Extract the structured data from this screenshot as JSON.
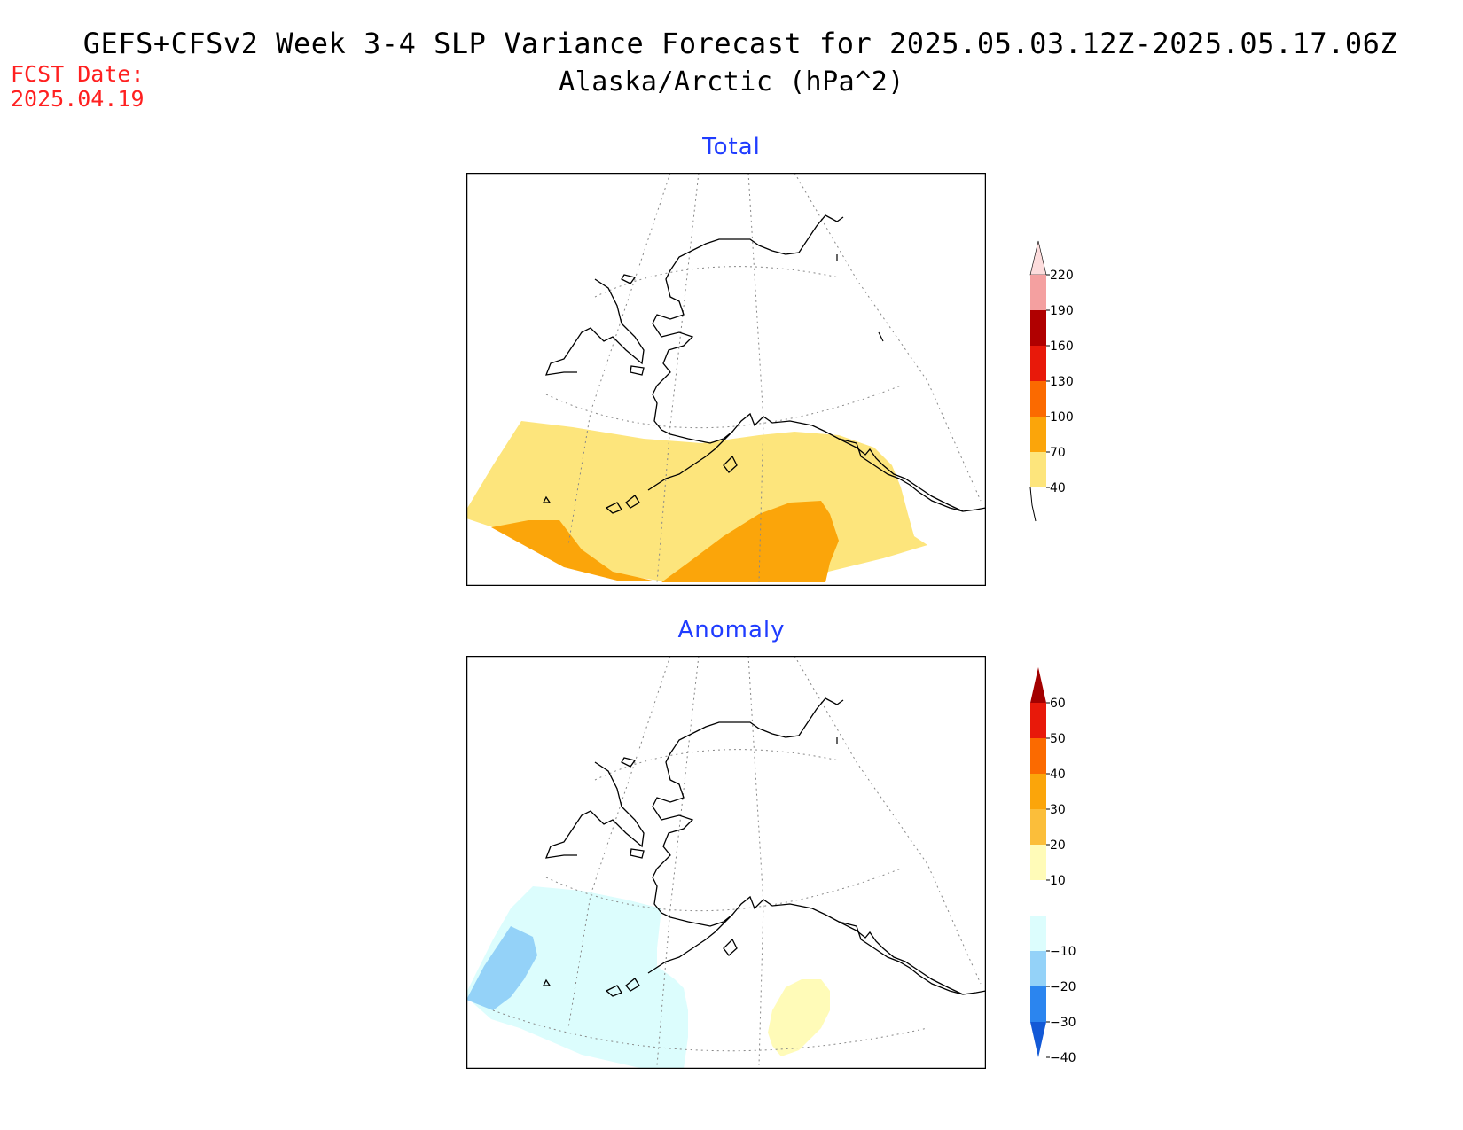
{
  "header": {
    "title": "GEFS+CFSv2 Week 3-4 SLP Variance Forecast for 2025.05.03.12Z-2025.05.17.06Z",
    "subtitle": "Alaska/Arctic (hPa^2)",
    "fcst_label": "FCST Date:",
    "fcst_date": "2025.04.19"
  },
  "panels": {
    "total": {
      "title": "Total",
      "colorbar": {
        "levels": [
          "40",
          "70",
          "100",
          "130",
          "160",
          "190",
          "220"
        ],
        "colors": [
          "#fde57c",
          "#fba50a",
          "#fb6a00",
          "#e8190a",
          "#b00000",
          "#f4a0a0",
          "#fddcdc"
        ]
      },
      "fills": [
        {
          "level": "40-70",
          "color": "#fde57c"
        },
        {
          "level": "70-100",
          "color": "#fba50a"
        }
      ]
    },
    "anomaly": {
      "title": "Anomaly",
      "colorbar": {
        "levels": [
          "60",
          "50",
          "40",
          "30",
          "20",
          "10",
          "−10",
          "−20",
          "−30",
          "−40"
        ],
        "colors": [
          "#a30000",
          "#e8190a",
          "#fb6a00",
          "#fba50a",
          "#fbbe3a",
          "#fffbb8",
          "#ffffff",
          "#dcfdfd",
          "#94d2f8",
          "#2b85ef",
          "#1359d6"
        ]
      },
      "fills": [
        {
          "level": "-20 to -10",
          "color": "#dcfdfd"
        },
        {
          "level": "-30 to -20",
          "color": "#94d2f8"
        },
        {
          "level": "10 to 20",
          "color": "#fffbb8"
        }
      ]
    }
  }
}
